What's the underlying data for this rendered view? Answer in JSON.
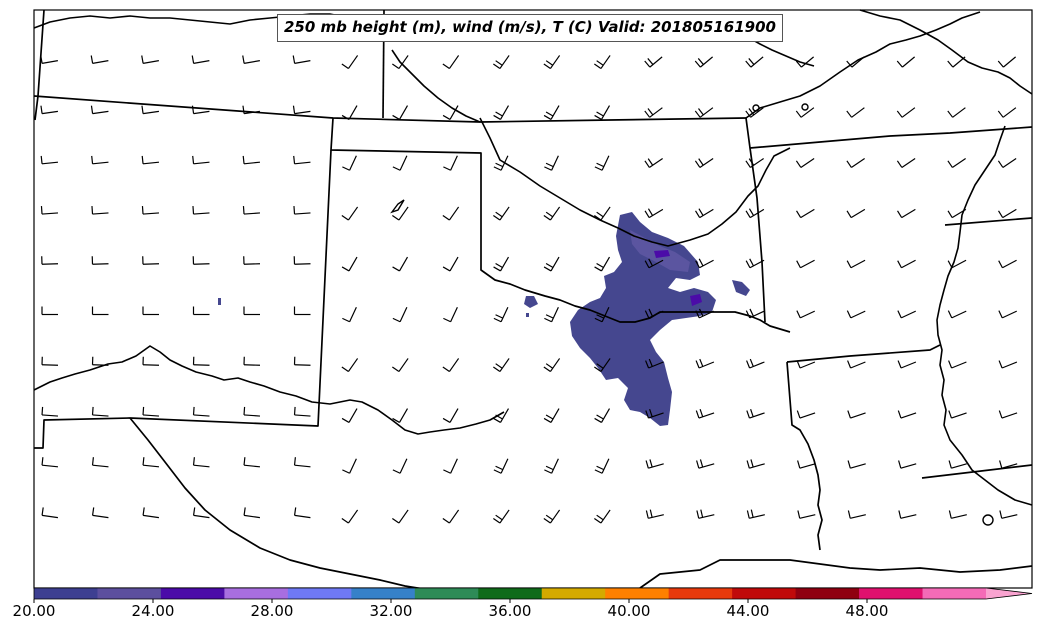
{
  "title": "250 mb height (m), wind (m/s), T (C) Valid: 201805161900",
  "colorbar": {
    "min": 20.0,
    "max": 52.0,
    "step": 2.0,
    "extend": "max",
    "tick_labels": [
      "20.00",
      "24.00",
      "28.00",
      "32.00",
      "36.00",
      "40.00",
      "44.00",
      "48.00"
    ],
    "colors": [
      "#3d3f91",
      "#5c4f9e",
      "#4b0ba8",
      "#a86ee0",
      "#6f79f5",
      "#3681c9",
      "#2e8b57",
      "#0f6b1a",
      "#d4aa00",
      "#ff8000",
      "#e83a0c",
      "#c00a0a",
      "#8f0010",
      "#e0106e",
      "#f46bb7"
    ],
    "extend_color": "#f9a3d0"
  },
  "shaded_field": {
    "variable": "wind speed (m/s)",
    "main_region_level": 20.0,
    "core_level": 24.0
  },
  "wind_barbs": {
    "units": "m/s",
    "typical_speed_range": "10-25"
  }
}
